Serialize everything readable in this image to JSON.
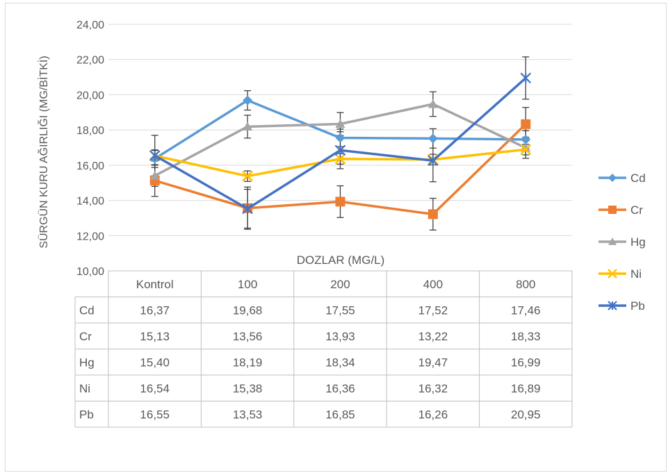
{
  "chart_data": {
    "type": "line",
    "title": "",
    "xlabel": "DOZLAR (MG/L)",
    "ylabel": "SÜRGÜN KURU AĞIRLIĞI (MG/BİTKİ)",
    "categories": [
      "Kontrol",
      "100",
      "200",
      "400",
      "800"
    ],
    "ylim": [
      10,
      24
    ],
    "yticks": [
      "10,00",
      "12,00",
      "14,00",
      "16,00",
      "18,00",
      "20,00",
      "22,00",
      "24,00"
    ],
    "grid": true,
    "legend_position": "right",
    "data_table": true,
    "series": [
      {
        "name": "Cd",
        "color": "#5B9BD5",
        "marker": "diamond",
        "values": [
          16.37,
          19.68,
          17.55,
          17.52,
          17.46
        ],
        "labels": [
          "16,37",
          "19,68",
          "17,55",
          "17,52",
          "17,46"
        ],
        "error": [
          0.5,
          0.55,
          0.5,
          0.55,
          0.5
        ]
      },
      {
        "name": "Cr",
        "color": "#ED7D31",
        "marker": "square",
        "values": [
          15.13,
          13.56,
          13.93,
          13.22,
          18.33
        ],
        "labels": [
          "15,13",
          "13,56",
          "13,93",
          "13,22",
          "18,33"
        ],
        "error": [
          0.9,
          1.2,
          0.9,
          0.9,
          0.95
        ]
      },
      {
        "name": "Hg",
        "color": "#A5A5A5",
        "marker": "triangle",
        "values": [
          15.4,
          18.19,
          18.34,
          19.47,
          16.99
        ],
        "labels": [
          "15,40",
          "18,19",
          "18,34",
          "19,47",
          "16,99"
        ],
        "error": [
          0.6,
          0.65,
          0.65,
          0.7,
          0.6
        ]
      },
      {
        "name": "Ni",
        "color": "#FFC000",
        "marker": "x",
        "values": [
          16.54,
          15.38,
          16.36,
          16.32,
          16.89
        ],
        "labels": [
          "16,54",
          "15,38",
          "16,36",
          "16,32",
          "16,89"
        ],
        "error": [
          0.3,
          0.3,
          0.3,
          0.3,
          0.3
        ]
      },
      {
        "name": "Pb",
        "color": "#4472C4",
        "marker": "star",
        "values": [
          16.55,
          13.53,
          16.85,
          16.26,
          20.95
        ],
        "labels": [
          "16,55",
          "13,53",
          "16,85",
          "16,26",
          "20,95"
        ],
        "error": [
          1.15,
          1.1,
          1.05,
          1.2,
          1.2
        ]
      }
    ]
  }
}
